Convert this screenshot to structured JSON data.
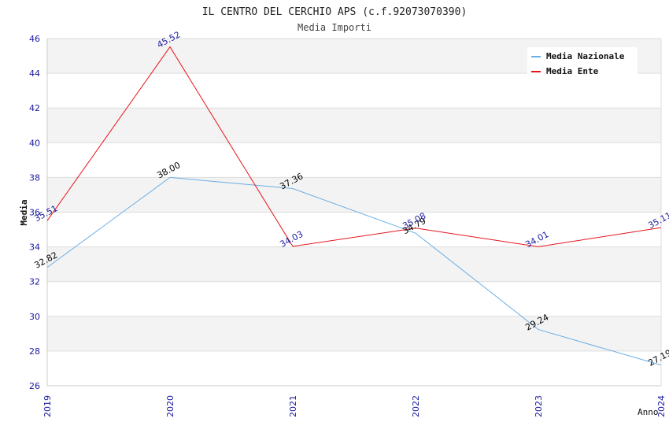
{
  "chart_data": {
    "type": "line",
    "title": "IL CENTRO DEL CERCHIO APS (c.f.92073070390)",
    "subtitle": "Media Importi",
    "xlabel": "Anno",
    "ylabel": "Media",
    "categories": [
      "2019",
      "2020",
      "2021",
      "2022",
      "2023",
      "2024"
    ],
    "ylim": [
      26,
      46
    ],
    "yticks": [
      26,
      28,
      30,
      32,
      34,
      36,
      38,
      40,
      42,
      44,
      46
    ],
    "grid": true,
    "legend_position": "top-right",
    "series": [
      {
        "name": "Media Nazionale",
        "color": "#6aaee6",
        "label_color": "#000000",
        "values": [
          32.82,
          38.0,
          37.36,
          34.79,
          29.24,
          27.19
        ],
        "labels": [
          "32.82",
          "38.00",
          "37.36",
          "34.79",
          "29.24",
          "27.19"
        ]
      },
      {
        "name": "Media Ente",
        "color": "#e8141c",
        "label_color": "#1a1aa0",
        "values": [
          35.51,
          45.52,
          34.03,
          35.08,
          34.01,
          35.11
        ],
        "labels": [
          "35.51",
          "45.52",
          "34.03",
          "35.08",
          "34.01",
          "35.11"
        ]
      }
    ]
  }
}
